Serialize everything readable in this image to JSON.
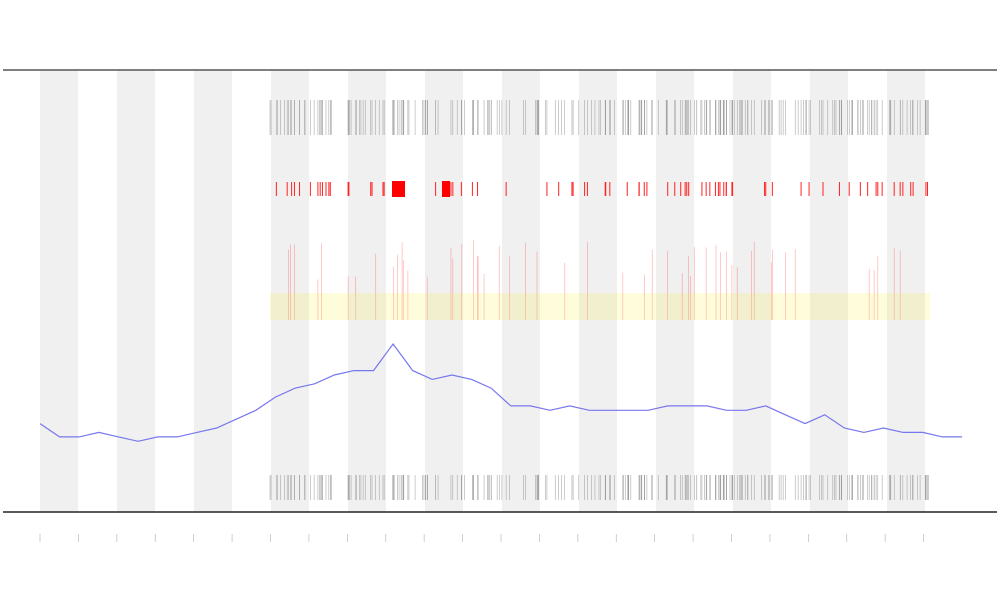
{
  "chart_data": {
    "type": "line",
    "series": [
      {
        "color": "#7777ee",
        "values": [
          20,
          17,
          17,
          18,
          17,
          16,
          17,
          17,
          18,
          19,
          21,
          23,
          26,
          28,
          29,
          31,
          32,
          32,
          38,
          32,
          30,
          31,
          30,
          28,
          24,
          24,
          23,
          24,
          23,
          23,
          23,
          23,
          24,
          24,
          24,
          23,
          23,
          24,
          22,
          20,
          22,
          19,
          18,
          19,
          18,
          18,
          17,
          17
        ]
      }
    ],
    "ylim": [
      0,
      100
    ]
  }
}
